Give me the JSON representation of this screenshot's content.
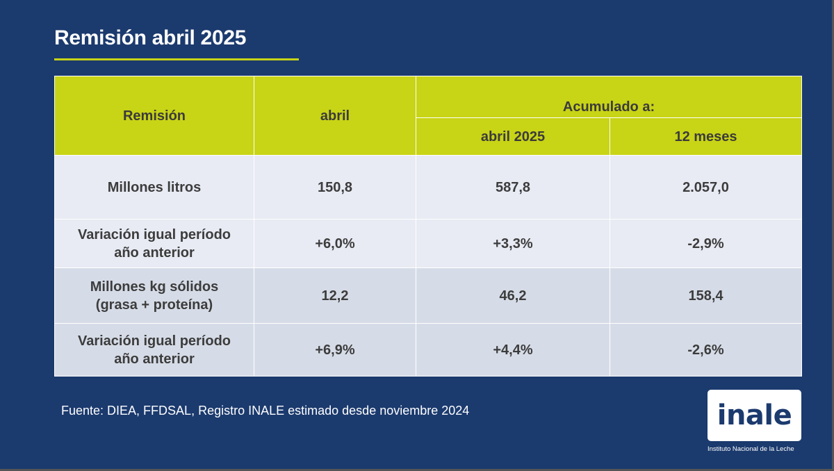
{
  "title": "Remisión abril 2025",
  "table": {
    "headers": {
      "col1": "Remisión",
      "col2": "abril",
      "group": "Acumulado a:",
      "col3": "abril 2025",
      "col4": "12 meses"
    },
    "rows": [
      {
        "label": "Millones litros",
        "abril": "150,8",
        "acum_abril": "587,8",
        "acum_12m": "2.057,0"
      },
      {
        "label": "Variación igual período año anterior",
        "abril": "+6,0%",
        "acum_abril": "+3,3%",
        "acum_12m": "-2,9%"
      },
      {
        "label": "Millones kg sólidos (grasa + proteína)",
        "abril": "12,2",
        "acum_abril": "46,2",
        "acum_12m": "158,4"
      },
      {
        "label": "Variación igual período año anterior",
        "abril": "+6,9%",
        "acum_abril": "+4,4%",
        "acum_12m": "-2,6%"
      }
    ]
  },
  "source": "Fuente: DIEA, FFDSAL, Registro INALE estimado desde noviembre 2024",
  "logo": {
    "text": "inale",
    "subtitle": "Instituto Nacional de la Leche"
  },
  "colors": {
    "background": "#1b3a6e",
    "accent": "#c8d416",
    "row_light": "#e8ebf4",
    "row_dark": "#d6dce7"
  }
}
